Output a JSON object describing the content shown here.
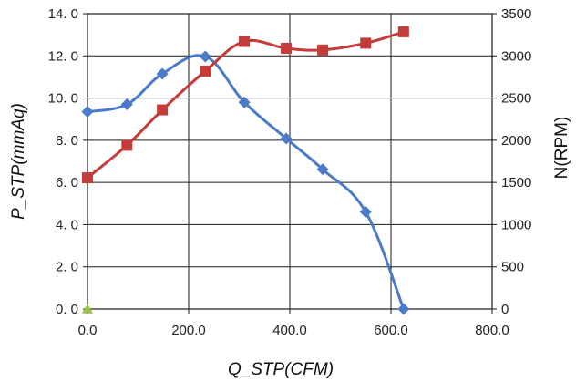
{
  "chart_data": {
    "type": "line",
    "xlabel": "Q_STP(CFM)",
    "ylabel_left": "P_STP(mmAq)",
    "ylabel_right": "N(RPM)",
    "xlim": [
      0,
      800
    ],
    "ylim_left": [
      0,
      14
    ],
    "ylim_right": [
      0,
      3500
    ],
    "x_ticks": [
      "0.0",
      "200.0",
      "400.0",
      "600.0",
      "800.0"
    ],
    "y_left_ticks": [
      "0. 0",
      "2. 0",
      "4. 0",
      "6. 0",
      "8. 0",
      "10. 0",
      "12. 0",
      "14. 0"
    ],
    "y_right_ticks": [
      "0",
      "500",
      "1000",
      "1500",
      "2000",
      "2500",
      "3000",
      "3500"
    ],
    "grid": true,
    "series": [
      {
        "axis": "left",
        "marker": "diamond",
        "color": "#4a7ac8",
        "x": [
          0,
          78,
          148,
          233,
          310,
          393,
          465,
          550,
          625
        ],
        "y": [
          9.35,
          9.7,
          11.15,
          11.97,
          9.8,
          8.08,
          6.62,
          4.6,
          0.0
        ]
      },
      {
        "axis": "right",
        "marker": "square",
        "color": "#c43c3a",
        "x": [
          0,
          78,
          148,
          233,
          310,
          393,
          465,
          550,
          625
        ],
        "y": [
          1555,
          1940,
          2360,
          2820,
          3170,
          3090,
          3070,
          3150,
          3285
        ]
      },
      {
        "axis": "left",
        "marker": "triangle",
        "color": "#97c049",
        "x": [
          0
        ],
        "y": [
          0.0
        ]
      }
    ]
  }
}
